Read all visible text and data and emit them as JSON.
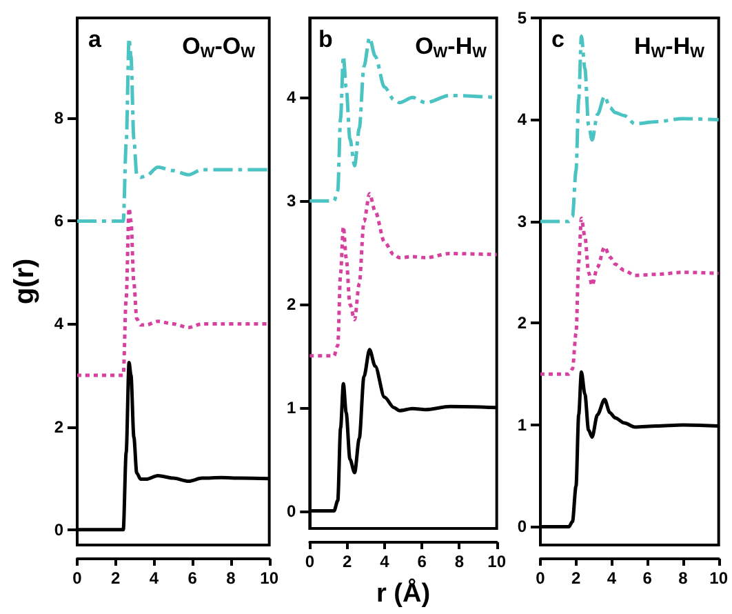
{
  "chart_data": [
    {
      "type": "line",
      "title": "O$_{W}$-O$_{W}$",
      "annotations": [
        "a"
      ],
      "ylabel": "g(r)",
      "xlim": [
        0,
        10
      ],
      "xticks": [
        0,
        2,
        4,
        6,
        8,
        10
      ],
      "ylim": [
        -0.3,
        9.95
      ],
      "yticks": [
        0,
        2,
        4,
        6,
        8
      ],
      "x": [
        0,
        2.4,
        2.55,
        2.7,
        2.8,
        2.95,
        3.1,
        3.3,
        3.6,
        4.2,
        5,
        5.8,
        6.5,
        7.5,
        8.5,
        10
      ],
      "series": [
        {
          "color": "#000000",
          "line_style": "solid",
          "values": [
            0,
            0,
            1.5,
            3.25,
            3.0,
            1.8,
            1.1,
            0.98,
            0.98,
            1.05,
            1.0,
            0.94,
            1.0,
            1.01,
            1.0,
            0.99
          ]
        },
        {
          "color": "#d6409f",
          "line_style": "dotted",
          "values": [
            3,
            3,
            4.5,
            6.25,
            6.0,
            4.8,
            4.1,
            3.98,
            3.98,
            4.05,
            4.0,
            3.93,
            4.0,
            4.0,
            4.0,
            4.0
          ]
        },
        {
          "color": "#4cc3c3",
          "line_style": "dashed",
          "values": [
            6,
            6,
            7.5,
            9.55,
            9.2,
            7.6,
            6.9,
            6.85,
            6.88,
            7.05,
            6.98,
            6.9,
            7.0,
            7.0,
            7.0,
            7.0
          ]
        }
      ]
    },
    {
      "type": "line",
      "title": "O$_{W}$-H$_{W}$",
      "annotations": [
        "b"
      ],
      "xlabel": "r (Å)",
      "xlim": [
        0,
        10
      ],
      "xticks": [
        0,
        2,
        4,
        6,
        8,
        10
      ],
      "ylim": [
        -0.17,
        4.77
      ],
      "yticks": [
        0,
        1,
        2,
        3,
        4
      ],
      "x": [
        0,
        1.3,
        1.5,
        1.65,
        1.8,
        1.95,
        2.15,
        2.4,
        2.65,
        2.9,
        3.2,
        3.5,
        4.0,
        4.5,
        4.8,
        5.5,
        6.2,
        7.5,
        10
      ],
      "series": [
        {
          "color": "#000000",
          "line_style": "solid",
          "values": [
            0,
            0,
            0.1,
            0.8,
            1.23,
            0.95,
            0.5,
            0.37,
            0.7,
            1.3,
            1.56,
            1.4,
            1.1,
            1.0,
            0.97,
            0.99,
            0.98,
            1.01,
            1.0
          ]
        },
        {
          "color": "#d6409f",
          "line_style": "dotted",
          "values": [
            1.5,
            1.5,
            1.6,
            2.3,
            2.75,
            2.45,
            2.0,
            1.85,
            2.2,
            2.8,
            3.07,
            2.9,
            2.6,
            2.48,
            2.45,
            2.46,
            2.45,
            2.49,
            2.48
          ]
        },
        {
          "color": "#4cc3c3",
          "line_style": "dashed",
          "values": [
            3,
            3,
            3.1,
            3.8,
            4.4,
            4.1,
            3.6,
            3.34,
            3.7,
            4.3,
            4.58,
            4.4,
            4.1,
            3.98,
            3.95,
            4.0,
            3.95,
            4.02,
            4.0
          ]
        }
      ]
    },
    {
      "type": "line",
      "title": "H$_{W}$-H$_{W}$",
      "annotations": [
        "c"
      ],
      "xlim": [
        0,
        10
      ],
      "xticks": [
        0,
        2,
        4,
        6,
        8,
        10
      ],
      "ylim": [
        -0.18,
        5
      ],
      "yticks": [
        0,
        1,
        2,
        3,
        4,
        5
      ],
      "x": [
        0,
        1.6,
        1.8,
        2.0,
        2.15,
        2.3,
        2.5,
        2.7,
        2.9,
        3.2,
        3.6,
        3.9,
        4.2,
        4.7,
        5.3,
        6.5,
        8,
        10
      ],
      "series": [
        {
          "color": "#000000",
          "line_style": "solid",
          "values": [
            0,
            0,
            0.05,
            0.4,
            1.1,
            1.52,
            1.3,
            0.95,
            0.88,
            1.1,
            1.25,
            1.12,
            1.07,
            1.02,
            0.98,
            0.99,
            1.0,
            0.99
          ]
        },
        {
          "color": "#d6409f",
          "line_style": "dotted",
          "values": [
            1.5,
            1.5,
            1.55,
            1.9,
            2.6,
            3.03,
            2.85,
            2.5,
            2.37,
            2.55,
            2.75,
            2.65,
            2.58,
            2.52,
            2.47,
            2.48,
            2.5,
            2.49
          ]
        },
        {
          "color": "#4cc3c3",
          "line_style": "dashed",
          "values": [
            3,
            3,
            3.05,
            3.5,
            4.2,
            4.82,
            4.5,
            3.95,
            3.8,
            4.05,
            4.23,
            4.12,
            4.07,
            4.04,
            3.96,
            3.98,
            4.01,
            4.0
          ]
        }
      ]
    }
  ]
}
